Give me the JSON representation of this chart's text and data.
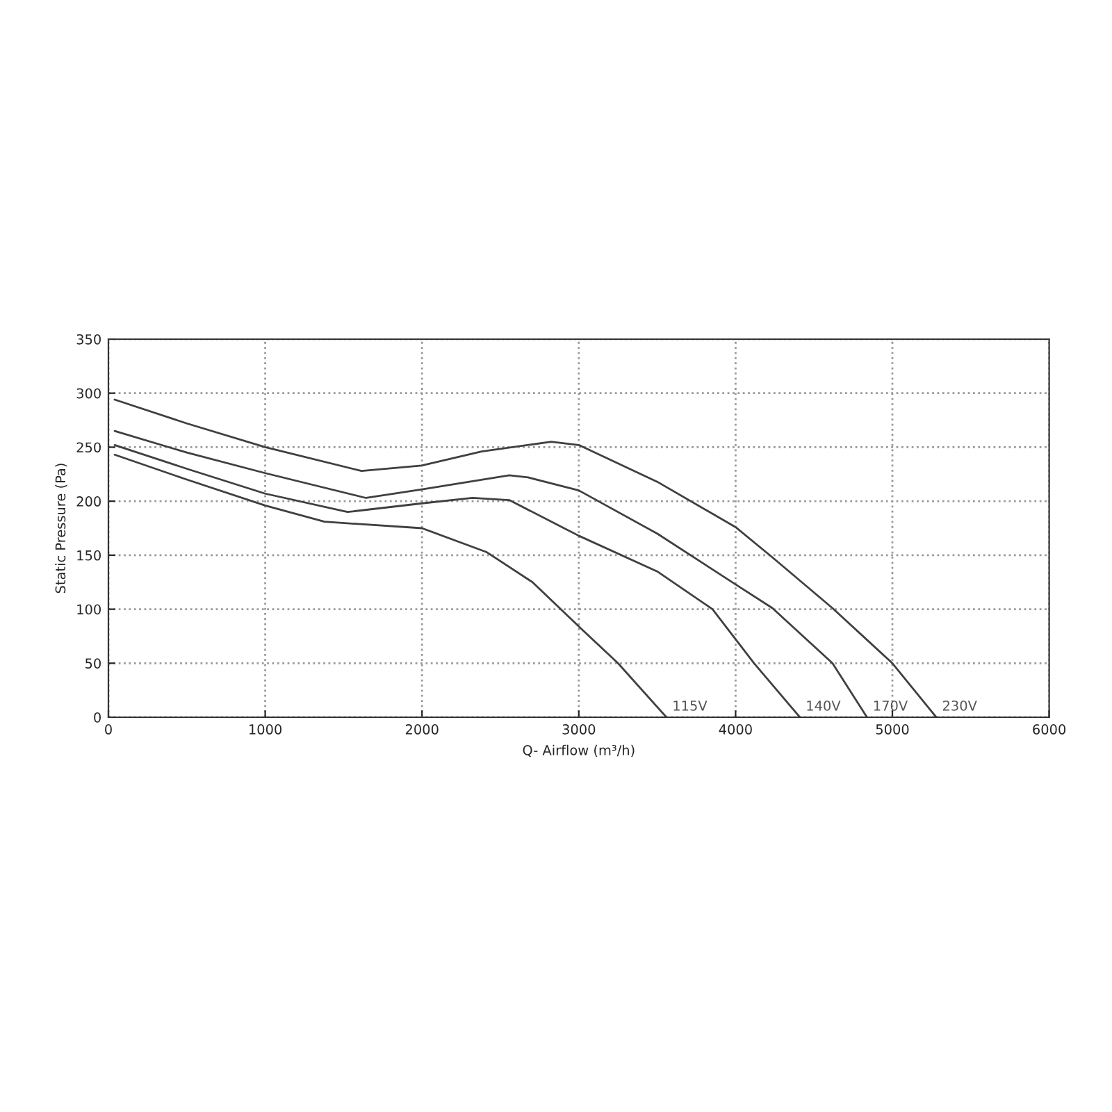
{
  "chart_data": {
    "type": "line",
    "xlabel": "Q- Airflow (m³/h)",
    "ylabel": "Static Pressure (Pa)",
    "xlim": [
      0,
      6000
    ],
    "ylim": [
      0,
      350
    ],
    "xticks": [
      0,
      1000,
      2000,
      3000,
      4000,
      5000,
      6000
    ],
    "yticks": [
      0,
      50,
      100,
      150,
      200,
      250,
      300,
      350
    ],
    "grid": true,
    "legend": false,
    "marker": "none",
    "line_style": "solid",
    "series": [
      {
        "name": "115V",
        "color": "#404040",
        "x": [
          40,
          500,
          1000,
          1378,
          2000,
          2410,
          2705,
          3030,
          3250,
          3559
        ],
        "values": [
          243,
          220,
          196,
          181,
          175,
          153,
          125,
          80,
          50,
          0
        ]
      },
      {
        "name": "140V",
        "color": "#404040",
        "x": [
          40,
          500,
          1000,
          1525,
          2000,
          2322,
          2557,
          3000,
          3500,
          3853,
          4118,
          4410
        ],
        "values": [
          252,
          230,
          207,
          190,
          198,
          203,
          201,
          168,
          135,
          100,
          50,
          0
        ]
      },
      {
        "name": "170V",
        "color": "#404040",
        "x": [
          40,
          500,
          1000,
          1643,
          2000,
          2557,
          2676,
          3000,
          3500,
          4000,
          4235,
          4618,
          4838
        ],
        "values": [
          265,
          245,
          226,
          203,
          211,
          224,
          222,
          210,
          170,
          123,
          101,
          50,
          0
        ]
      },
      {
        "name": "230V",
        "color": "#404040",
        "x": [
          40,
          500,
          1000,
          1614,
          1997,
          2380,
          2824,
          3000,
          3500,
          4000,
          4235,
          4618,
          5000,
          5280
        ],
        "values": [
          294,
          272,
          250,
          228,
          233,
          246,
          255,
          252,
          218,
          176,
          148,
          101,
          50,
          0
        ]
      }
    ]
  }
}
